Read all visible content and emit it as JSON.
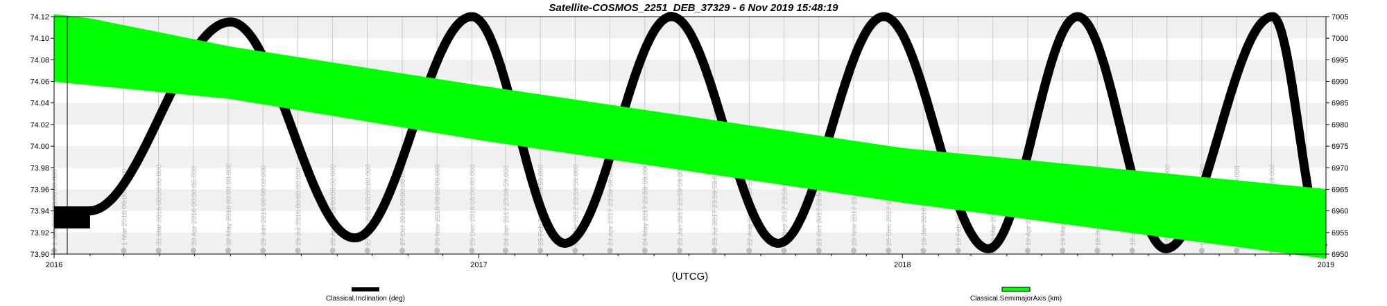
{
  "chart_data": {
    "type": "line",
    "title": "Satellite-COSMOS_2251_DEB_37329 -  6 Nov 2019 15:48:19",
    "xlabel": "(UTCG)",
    "x_ticks": [
      "2016",
      "2017",
      "2018",
      "2019"
    ],
    "xlim": [
      "2016-01-01",
      "2019-01-01"
    ],
    "y_left": {
      "ylim": [
        73.9,
        74.12
      ],
      "ticks": [
        "73.90",
        "73.92",
        "73.94",
        "73.96",
        "73.98",
        "74.00",
        "74.02",
        "74.04",
        "74.06",
        "74.08",
        "74.10",
        "74.12"
      ]
    },
    "y_right": {
      "ylim": [
        6950,
        7005
      ],
      "ticks": [
        "6950",
        "6955",
        "6960",
        "6965",
        "6970",
        "6975",
        "6980",
        "6985",
        "6990",
        "6995",
        "7000",
        "7005"
      ]
    },
    "grid": true,
    "legend_position": "bottom",
    "series": [
      {
        "name": "Classical.Inclination (deg)",
        "axis": "left",
        "color": "#000000",
        "start": "2016-01-01",
        "end": "2019-01-01",
        "initial_band": [
          73.925,
          73.94
        ],
        "peaks": [
          [
            "2016-06-01",
            74.115
          ],
          [
            "2016-12-26",
            74.12
          ],
          [
            "2017-06-16",
            74.12
          ],
          [
            "2017-12-16",
            74.12
          ],
          [
            "2018-06-01",
            74.12
          ],
          [
            "2018-11-16",
            74.12
          ]
        ],
        "troughs": [
          [
            "2016-09-16",
            73.915
          ],
          [
            "2017-03-16",
            73.91
          ],
          [
            "2017-09-16",
            73.91
          ],
          [
            "2018-03-16",
            73.905
          ],
          [
            "2018-08-16",
            73.905
          ],
          [
            "2019-01-01",
            73.905
          ]
        ]
      },
      {
        "name": "Classical.SemimajorAxis (km)",
        "axis": "right",
        "color": "#00ff00",
        "start": "2016-01-01",
        "end": "2019-01-01",
        "upper": [
          [
            "2016-01-01",
            7005.5
          ],
          [
            "2016-02-01",
            7004.5
          ],
          [
            "2016-06-01",
            6998
          ],
          [
            "2017-01-01",
            6989
          ],
          [
            "2018-01-01",
            6974.5
          ],
          [
            "2019-01-01",
            6965
          ]
        ],
        "lower": [
          [
            "2016-01-01",
            6990
          ],
          [
            "2016-06-01",
            6986
          ],
          [
            "2017-01-01",
            6976.5
          ],
          [
            "2018-01-01",
            6962
          ],
          [
            "2019-01-01",
            6949
          ]
        ]
      }
    ],
    "annotations": [
      {
        "date": "2016-01-01",
        "label": "1 Jan 2016 00:00:00.000"
      },
      {
        "date": "2016-03-01",
        "label": "1 Mar 2016 00:00:00.000"
      },
      {
        "date": "2016-03-31",
        "label": "31 Mar 2016 00:00:00.000"
      },
      {
        "date": "2016-04-30",
        "label": "30 Apr 2016 00:00:00.000"
      },
      {
        "date": "2016-05-30",
        "label": "30 May 2016 00:00:00.000"
      },
      {
        "date": "2016-06-29",
        "label": "29 Jun 2016 00:00:00.000"
      },
      {
        "date": "2016-07-29",
        "label": "29 Jul 2016 00:00:00.000"
      },
      {
        "date": "2016-08-28",
        "label": "28 Aug 2016 00:00:00.000"
      },
      {
        "date": "2016-09-27",
        "label": "27 Sep 2016 00:00:00.000"
      },
      {
        "date": "2016-10-27",
        "label": "27 Oct 2016 00:00:00.000"
      },
      {
        "date": "2016-11-26",
        "label": "26 Nov 2016 00:00:00.000"
      },
      {
        "date": "2016-12-26",
        "label": "26 Dec 2016 00:00:00.000"
      },
      {
        "date": "2017-01-24",
        "label": "24 Jan 2017 23:59:59.000"
      },
      {
        "date": "2017-02-23",
        "label": "23 Feb 2017 23:59:59.000"
      },
      {
        "date": "2017-03-25",
        "label": "25 Mar 2017 23:59:59.000"
      },
      {
        "date": "2017-04-24",
        "label": "24 Apr 2017 23:59:59.000"
      },
      {
        "date": "2017-05-24",
        "label": "24 May 2017 23:59:59.000"
      },
      {
        "date": "2017-06-23",
        "label": "23 Jun 2017 23:59:59.000"
      },
      {
        "date": "2017-07-23",
        "label": "23 Jul 2017 23:59:59.000"
      },
      {
        "date": "2017-08-22",
        "label": "22 Aug 2017 23:59:59.000"
      },
      {
        "date": "2017-09-21",
        "label": "21 Sep 2017 23:59:59.000"
      },
      {
        "date": "2017-10-21",
        "label": "21 Oct 2017 23:59:59.000"
      },
      {
        "date": "2017-11-20",
        "label": "20 Nov 2017 23:59:59.000"
      },
      {
        "date": "2017-12-20",
        "label": "20 Dec 2017 23:59:59.000"
      },
      {
        "date": "2018-01-19",
        "label": "19 Jan 2018 23:59:59.000"
      },
      {
        "date": "2018-02-18",
        "label": "18 Feb 2018 23:59:59.000"
      },
      {
        "date": "2018-03-20",
        "label": "20 Mar 2018 23:59:59.000"
      },
      {
        "date": "2018-04-19",
        "label": "19 Apr 2018 23:59:59.000"
      },
      {
        "date": "2018-05-19",
        "label": "19 May 2018 23:59:59.000"
      },
      {
        "date": "2018-06-18",
        "label": "18 Jun 2018 23:59:59.000"
      },
      {
        "date": "2018-07-18",
        "label": "18 Jul 2018 23:59:59.000"
      },
      {
        "date": "2018-08-17",
        "label": "17 Aug 2018 23:59:59.000"
      },
      {
        "date": "2018-09-16",
        "label": "16 Sep 2018 23:59:59.000"
      },
      {
        "date": "2018-10-16",
        "label": "16 Oct 2018 23:59:59.000"
      },
      {
        "date": "2018-11-15",
        "label": "15 Nov 2018 23:59:59.000"
      },
      {
        "date": "2018-12-15",
        "label": "15 Dec 2018 23:59:59.000"
      }
    ]
  }
}
